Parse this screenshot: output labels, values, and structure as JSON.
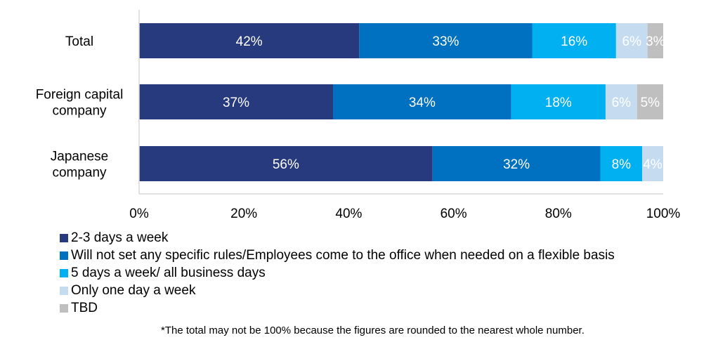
{
  "chart_data": {
    "type": "bar",
    "orientation": "horizontal",
    "stacked": true,
    "categories": [
      "Total",
      "Foreign capital company",
      "Japanese company"
    ],
    "category_lines": [
      [
        "Total"
      ],
      [
        "Foreign capital",
        "company"
      ],
      [
        "Japanese",
        "company"
      ]
    ],
    "series": [
      {
        "name": "2-3 days a week",
        "color": "#283A7E",
        "values": [
          42,
          37,
          56
        ],
        "labels": [
          "42%",
          "37%",
          "56%"
        ]
      },
      {
        "name": "Will not set any specific rules/Employees come to the office when needed on a flexible basis",
        "color": "#0070C0",
        "values": [
          33,
          34,
          32
        ],
        "labels": [
          "33%",
          "34%",
          "32%"
        ]
      },
      {
        "name": "5 days a week/ all business days",
        "color": "#00B0F0",
        "values": [
          16,
          18,
          8
        ],
        "labels": [
          "16%",
          "18%",
          "8%"
        ]
      },
      {
        "name": "Only one day a week",
        "color": "#C5DCF0",
        "values": [
          6,
          6,
          4
        ],
        "labels": [
          "6%",
          "6%",
          "4%"
        ]
      },
      {
        "name": "TBD",
        "color": "#BFBFBF",
        "values": [
          3,
          5,
          0
        ],
        "labels": [
          "3%",
          "5%",
          ""
        ]
      }
    ],
    "xlim": [
      0,
      100
    ],
    "x_ticks": [
      0,
      20,
      40,
      60,
      80,
      100
    ],
    "x_tick_labels": [
      "0%",
      "20%",
      "40%",
      "60%",
      "80%",
      "100%"
    ],
    "grid": false,
    "legend_position": "bottom-left"
  },
  "footnote": "*The total may not be 100% because the figures are rounded to the nearest whole number."
}
